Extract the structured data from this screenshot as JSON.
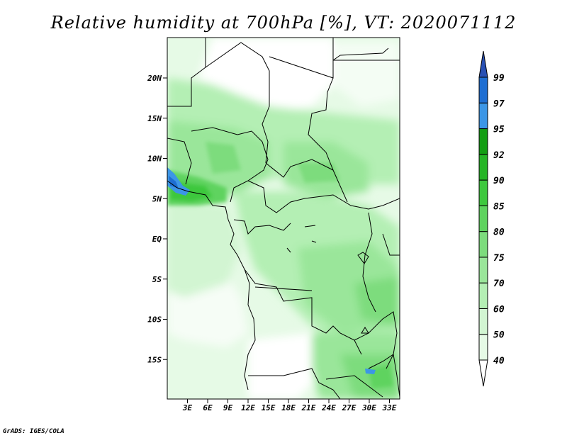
{
  "title": "Relative humidity at 700hPa [%], VT: 2020071112",
  "credit": "GrADS: IGES/COLA",
  "lat_ticks": [
    "20N",
    "15N",
    "10N",
    "5N",
    "EQ",
    "5S",
    "10S",
    "15S"
  ],
  "lon_ticks": [
    "3E",
    "6E",
    "9E",
    "12E",
    "15E",
    "18E",
    "21E",
    "24E",
    "27E",
    "30E",
    "33E"
  ],
  "colorbar": {
    "levels": [
      "40",
      "50",
      "60",
      "70",
      "75",
      "80",
      "85",
      "90",
      "92",
      "95",
      "97",
      "99"
    ],
    "colors": [
      "#ffffff",
      "#e6fae6",
      "#d2f5d2",
      "#b4efb4",
      "#9ae69a",
      "#7ddc7d",
      "#5ed35e",
      "#3ec83e",
      "#26b526",
      "#139e13",
      "#3c96e6",
      "#1e6ed2",
      "#2850b4"
    ]
  },
  "chart_data": {
    "type": "heatmap",
    "variable": "Relative humidity at 700hPa",
    "units": "%",
    "valid_time": "2020071112",
    "lon_range": [
      0,
      34.5
    ],
    "lat_range": [
      -20,
      24.5
    ],
    "contour_levels": [
      40,
      50,
      60,
      70,
      75,
      80,
      85,
      90,
      92,
      95,
      97,
      99
    ]
  }
}
